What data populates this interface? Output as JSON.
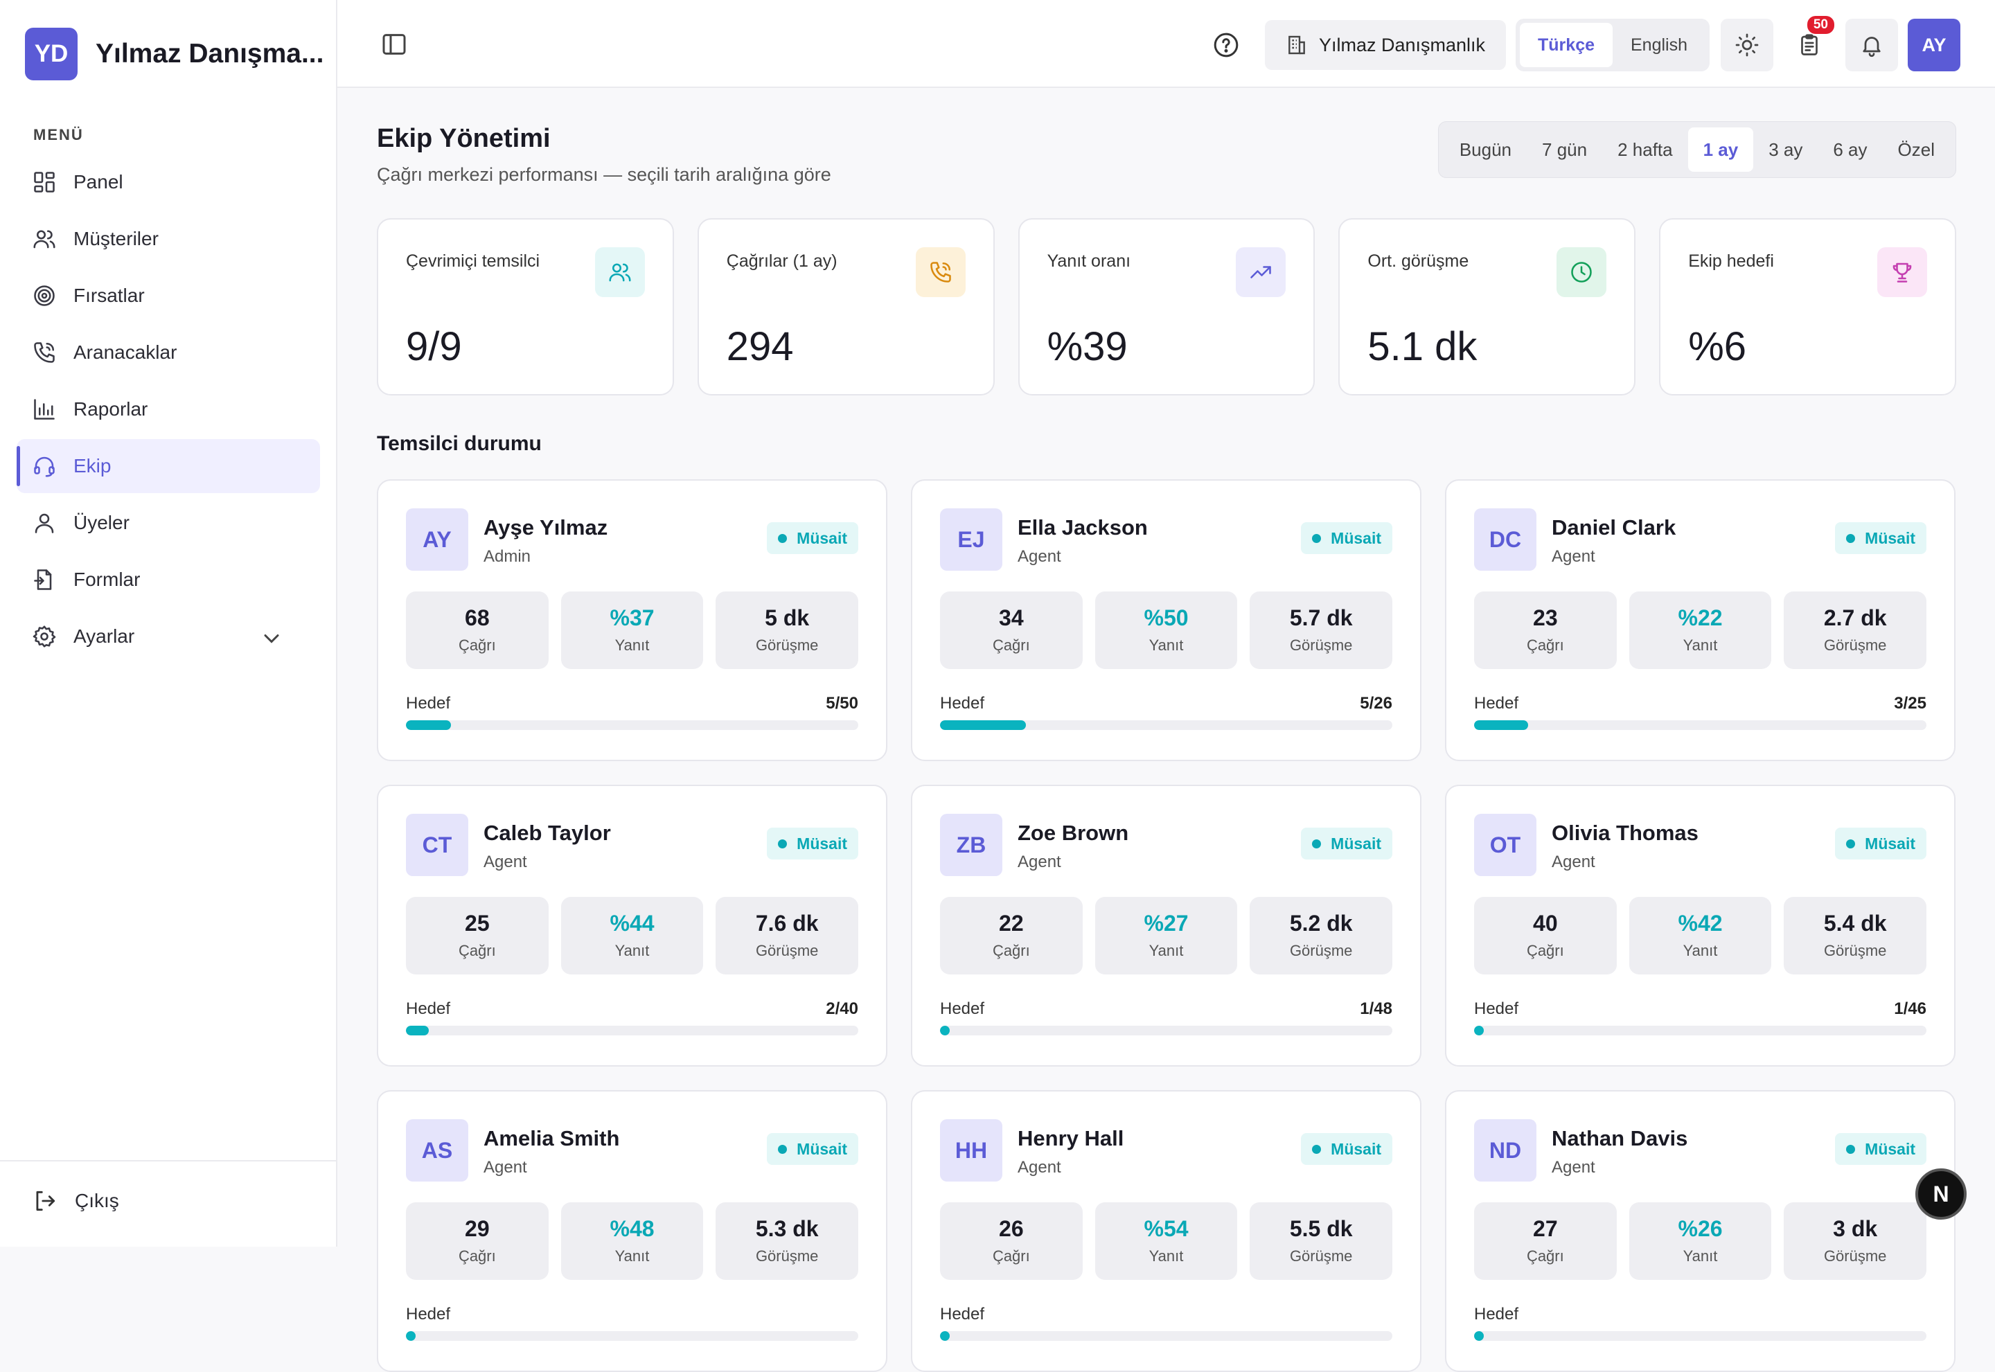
{
  "brand": {
    "initials": "YD",
    "name": "Yılmaz Danışma..."
  },
  "sidebar": {
    "menu_label": "MENÜ",
    "items": [
      {
        "label": "Panel",
        "icon": "dashboard-icon"
      },
      {
        "label": "Müşteriler",
        "icon": "users-icon"
      },
      {
        "label": "Fırsatlar",
        "icon": "target-icon"
      },
      {
        "label": "Aranacaklar",
        "icon": "phone-icon"
      },
      {
        "label": "Raporlar",
        "icon": "chart-icon"
      },
      {
        "label": "Ekip",
        "icon": "headset-icon",
        "active": true
      },
      {
        "label": "Üyeler",
        "icon": "user-icon"
      },
      {
        "label": "Formlar",
        "icon": "form-icon"
      },
      {
        "label": "Ayarlar",
        "icon": "gear-icon"
      }
    ],
    "logout": "Çıkış"
  },
  "topbar": {
    "org": "Yılmaz Danışmanlık",
    "lang": [
      "Türkçe",
      "English"
    ],
    "lang_active": "Türkçe",
    "tasks_badge": "50",
    "user_initials": "AY"
  },
  "page": {
    "title": "Ekip Yönetimi",
    "subtitle": "Çağrı merkezi performansı — seçili tarih aralığına göre"
  },
  "range": {
    "options": [
      "Bugün",
      "7 gün",
      "2 hafta",
      "1 ay",
      "3 ay",
      "6 ay",
      "Özel"
    ],
    "active": "1 ay"
  },
  "stats": [
    {
      "label": "Çevrimiçi temsilci",
      "value": "9/9",
      "icon": "users-icon",
      "color": "#0aa8b5",
      "bg": "#e4f7f7"
    },
    {
      "label": "Çağrılar (1 ay)",
      "value": "294",
      "icon": "phone-icon",
      "color": "#d98a0f",
      "bg": "#fdf1d9"
    },
    {
      "label": "Yanıt oranı",
      "value": "%39",
      "icon": "trend-up-icon",
      "color": "#5b5bd6",
      "bg": "#ecebfc"
    },
    {
      "label": "Ort. görüşme",
      "value": "5.1 dk",
      "icon": "clock-icon",
      "color": "#14a05a",
      "bg": "#e1f5ea"
    },
    {
      "label": "Ekip hedefi",
      "value": "%6",
      "icon": "trophy-icon",
      "color": "#c43fb0",
      "bg": "#fbe6f7"
    }
  ],
  "section_title": "Temsilci durumu",
  "labels": {
    "calls": "Çağrı",
    "answer": "Yanıt",
    "talk": "Görüşme",
    "goal": "Hedef"
  },
  "agents": [
    {
      "initials": "AY",
      "name": "Ayşe Yılmaz",
      "role": "Admin",
      "status": "Müsait",
      "calls": "68",
      "answer": "%37",
      "talk": "5 dk",
      "goal": "5/50",
      "progress": 0.1
    },
    {
      "initials": "EJ",
      "name": "Ella Jackson",
      "role": "Agent",
      "status": "Müsait",
      "calls": "34",
      "answer": "%50",
      "talk": "5.7 dk",
      "goal": "5/26",
      "progress": 0.19
    },
    {
      "initials": "DC",
      "name": "Daniel Clark",
      "role": "Agent",
      "status": "Müsait",
      "calls": "23",
      "answer": "%22",
      "talk": "2.7 dk",
      "goal": "3/25",
      "progress": 0.12
    },
    {
      "initials": "CT",
      "name": "Caleb Taylor",
      "role": "Agent",
      "status": "Müsait",
      "calls": "25",
      "answer": "%44",
      "talk": "7.6 dk",
      "goal": "2/40",
      "progress": 0.05
    },
    {
      "initials": "ZB",
      "name": "Zoe Brown",
      "role": "Agent",
      "status": "Müsait",
      "calls": "22",
      "answer": "%27",
      "talk": "5.2 dk",
      "goal": "1/48",
      "progress": 0.02
    },
    {
      "initials": "OT",
      "name": "Olivia Thomas",
      "role": "Agent",
      "status": "Müsait",
      "calls": "40",
      "answer": "%42",
      "talk": "5.4 dk",
      "goal": "1/46",
      "progress": 0.02
    },
    {
      "initials": "AS",
      "name": "Amelia Smith",
      "role": "Agent",
      "status": "Müsait",
      "calls": "29",
      "answer": "%48",
      "talk": "5.3 dk",
      "goal": "",
      "progress": 0
    },
    {
      "initials": "HH",
      "name": "Henry Hall",
      "role": "Agent",
      "status": "Müsait",
      "calls": "26",
      "answer": "%54",
      "talk": "5.5 dk",
      "goal": "",
      "progress": 0
    },
    {
      "initials": "ND",
      "name": "Nathan Davis",
      "role": "Agent",
      "status": "Müsait",
      "calls": "27",
      "answer": "%26",
      "talk": "3 dk",
      "goal": "",
      "progress": 0
    }
  ],
  "fab": "N"
}
